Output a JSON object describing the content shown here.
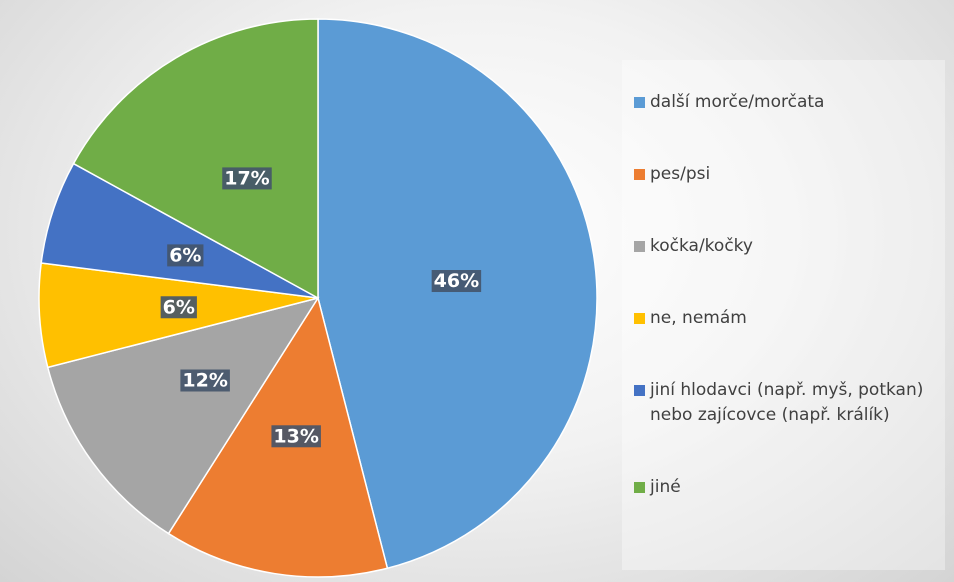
{
  "chart_data": {
    "type": "pie",
    "categories": [
      "další morče/morčata",
      "pes/psi",
      "kočka/kočky",
      "ne, nemám",
      "jiní hlodavci (např. myš, potkan) nebo zajícovce (např. králík)",
      "jiné"
    ],
    "values": [
      46,
      13,
      12,
      6,
      6,
      17
    ],
    "value_labels": [
      "46%",
      "13%",
      "12%",
      "6%",
      "6%",
      "17%"
    ],
    "colors": [
      "#5b9bd5",
      "#ed7d31",
      "#a5a5a5",
      "#ffc000",
      "#4472c4",
      "#70ad47"
    ],
    "legend": "right"
  }
}
